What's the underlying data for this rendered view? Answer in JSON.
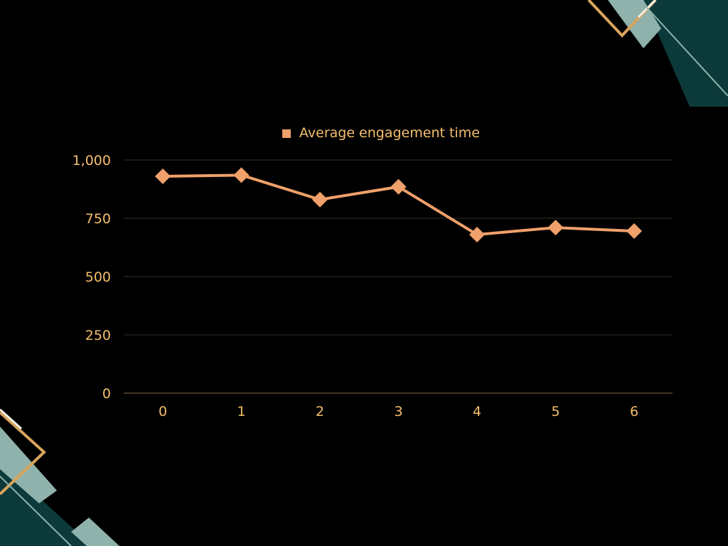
{
  "colors": {
    "background": "#000000",
    "series": "#F0A06A",
    "text": "#F5BF6E",
    "grid": "#3A2E22",
    "axis": "#8A6A4A",
    "deco_teal_dark": "#0C3A3A",
    "deco_teal_light": "#8FB3AC",
    "deco_gold": "#D9A45B",
    "deco_white": "#F3EFE6"
  },
  "chart_data": {
    "type": "line",
    "x": [
      0,
      1,
      2,
      3,
      4,
      5,
      6
    ],
    "series": [
      {
        "name": "Average engagement time",
        "values": [
          930,
          935,
          830,
          885,
          680,
          710,
          695
        ],
        "marker": "diamond"
      }
    ],
    "ylim": [
      0,
      1000
    ],
    "yticks": [
      0,
      250,
      500,
      750,
      1000
    ],
    "ytick_labels": [
      "0",
      "250",
      "500",
      "750",
      "1,000"
    ],
    "xtick_labels": [
      "0",
      "1",
      "2",
      "3",
      "4",
      "5",
      "6"
    ],
    "grid": true,
    "legend": "top-center",
    "title": "",
    "xlabel": "",
    "ylabel": ""
  }
}
